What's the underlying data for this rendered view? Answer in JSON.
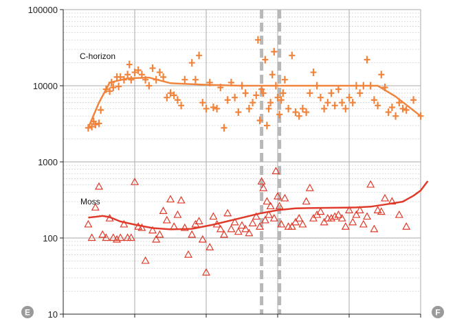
{
  "chart_data": {
    "type": "scatter",
    "title": "",
    "xlabel": "",
    "ylabel": "",
    "y_scale": "log",
    "ylim": [
      10,
      100000
    ],
    "y_ticks": [
      "10",
      "100",
      "1000",
      "10000",
      "100000"
    ],
    "xlim": [
      0,
      100
    ],
    "x_ticks": [
      0,
      20,
      40,
      60,
      80,
      100
    ],
    "grid": true,
    "colors": {
      "c_horizon": "#f0843c",
      "moss": "#e03a2a",
      "band": "#b8b8b8",
      "marker": "#9a9a9a"
    },
    "corner_markers": {
      "left": "E",
      "right": "F"
    },
    "reference_lines": [
      55.5,
      60.5
    ],
    "series": [
      {
        "name": "C-horizon",
        "marker": "plus",
        "points": [
          [
            7,
            2800
          ],
          [
            8,
            2900
          ],
          [
            9,
            3100
          ],
          [
            10,
            3200
          ],
          [
            10.5,
            4800
          ],
          [
            8.5,
            3400
          ],
          [
            12,
            9000
          ],
          [
            13,
            8500
          ],
          [
            13.5,
            11000
          ],
          [
            14,
            9500
          ],
          [
            15,
            13000
          ],
          [
            15.5,
            9800
          ],
          [
            16,
            13000
          ],
          [
            17,
            12000
          ],
          [
            18,
            14000
          ],
          [
            18.5,
            19000
          ],
          [
            19,
            12000
          ],
          [
            20,
            15000
          ],
          [
            21,
            16000
          ],
          [
            22,
            14000
          ],
          [
            23,
            12000
          ],
          [
            24,
            10000
          ],
          [
            25,
            17000
          ],
          [
            26,
            12000
          ],
          [
            27,
            15000
          ],
          [
            28,
            13000
          ],
          [
            29,
            7000
          ],
          [
            30,
            8000
          ],
          [
            31,
            7500
          ],
          [
            32,
            6500
          ],
          [
            33,
            5500
          ],
          [
            34,
            12000
          ],
          [
            36,
            20000
          ],
          [
            37,
            12000
          ],
          [
            38,
            25000
          ],
          [
            39,
            6000
          ],
          [
            40,
            5000
          ],
          [
            41,
            11000
          ],
          [
            42,
            5200
          ],
          [
            43,
            5000
          ],
          [
            44,
            9500
          ],
          [
            45,
            2800
          ],
          [
            46,
            6500
          ],
          [
            47,
            11000
          ],
          [
            48,
            7000
          ],
          [
            49,
            4500
          ],
          [
            50,
            10000
          ],
          [
            51,
            8000
          ],
          [
            52,
            5000
          ],
          [
            53,
            6000
          ],
          [
            54,
            7500
          ],
          [
            54.5,
            40000
          ],
          [
            55,
            3500
          ],
          [
            55.5,
            9000
          ],
          [
            56,
            8000
          ],
          [
            56.5,
            22000
          ],
          [
            57,
            3000
          ],
          [
            57.5,
            5000
          ],
          [
            58,
            6000
          ],
          [
            58.5,
            14000
          ],
          [
            59,
            28000
          ],
          [
            59.5,
            10000
          ],
          [
            60,
            7000
          ],
          [
            60.5,
            4200
          ],
          [
            61,
            6500
          ],
          [
            61.5,
            8000
          ],
          [
            62,
            12000
          ],
          [
            63,
            5000
          ],
          [
            64,
            25000
          ],
          [
            65,
            4500
          ],
          [
            66,
            4000
          ],
          [
            67,
            5000
          ],
          [
            68,
            4500
          ],
          [
            69,
            8000
          ],
          [
            70,
            15000
          ],
          [
            71,
            10000
          ],
          [
            72,
            7000
          ],
          [
            73,
            5000
          ],
          [
            74,
            6000
          ],
          [
            75,
            8000
          ],
          [
            76,
            5500
          ],
          [
            77,
            9000
          ],
          [
            78,
            6000
          ],
          [
            79,
            5000
          ],
          [
            80,
            7000
          ],
          [
            81,
            6000
          ],
          [
            82,
            10000
          ],
          [
            83,
            8000
          ],
          [
            84,
            10000
          ],
          [
            85,
            22000
          ],
          [
            86,
            10000
          ],
          [
            87,
            6500
          ],
          [
            88,
            5500
          ],
          [
            89,
            14000
          ],
          [
            90,
            9500
          ],
          [
            91,
            4500
          ],
          [
            92,
            5200
          ],
          [
            93,
            4000
          ],
          [
            94,
            6000
          ],
          [
            95,
            5000
          ],
          [
            96,
            4800
          ],
          [
            98,
            6500
          ],
          [
            100,
            4000
          ]
        ],
        "trend": [
          [
            7,
            2800
          ],
          [
            10,
            6000
          ],
          [
            13,
            11000
          ],
          [
            18,
            12500
          ],
          [
            24,
            12800
          ],
          [
            30,
            10800
          ],
          [
            40,
            10300
          ],
          [
            50,
            10000
          ],
          [
            60,
            10000
          ],
          [
            70,
            10000
          ],
          [
            80,
            10000
          ],
          [
            88,
            10000
          ],
          [
            93,
            7200
          ],
          [
            100,
            4000
          ]
        ]
      },
      {
        "name": "Moss",
        "marker": "triangle",
        "points": [
          [
            7,
            150
          ],
          [
            8,
            100
          ],
          [
            9,
            250
          ],
          [
            10,
            470
          ],
          [
            11,
            110
          ],
          [
            12,
            100
          ],
          [
            13,
            180
          ],
          [
            14,
            100
          ],
          [
            15,
            95
          ],
          [
            16,
            100
          ],
          [
            17,
            150
          ],
          [
            18,
            100
          ],
          [
            19,
            100
          ],
          [
            20,
            540
          ],
          [
            21,
            140
          ],
          [
            22,
            135
          ],
          [
            23,
            50
          ],
          [
            25,
            125
          ],
          [
            26,
            95
          ],
          [
            27,
            110
          ],
          [
            28,
            225
          ],
          [
            29,
            170
          ],
          [
            30,
            320
          ],
          [
            31,
            140
          ],
          [
            32,
            200
          ],
          [
            33,
            310
          ],
          [
            34,
            135
          ],
          [
            35,
            60
          ],
          [
            36,
            110
          ],
          [
            37,
            150
          ],
          [
            38,
            165
          ],
          [
            39,
            95
          ],
          [
            40,
            35
          ],
          [
            41,
            75
          ],
          [
            42,
            190
          ],
          [
            43,
            150
          ],
          [
            44,
            130
          ],
          [
            45,
            110
          ],
          [
            46,
            210
          ],
          [
            47,
            130
          ],
          [
            48,
            160
          ],
          [
            49,
            120
          ],
          [
            50,
            145
          ],
          [
            51,
            130
          ],
          [
            52,
            115
          ],
          [
            53,
            155
          ],
          [
            54,
            190
          ],
          [
            55,
            140
          ],
          [
            55.5,
            550
          ],
          [
            56,
            450
          ],
          [
            56.5,
            170
          ],
          [
            57,
            300
          ],
          [
            57.5,
            200
          ],
          [
            58,
            260
          ],
          [
            59,
            180
          ],
          [
            59.5,
            750
          ],
          [
            60,
            350
          ],
          [
            60.5,
            260
          ],
          [
            61,
            150
          ],
          [
            62,
            330
          ],
          [
            63,
            140
          ],
          [
            64,
            140
          ],
          [
            65,
            160
          ],
          [
            66,
            180
          ],
          [
            67,
            150
          ],
          [
            68,
            300
          ],
          [
            69,
            450
          ],
          [
            70,
            180
          ],
          [
            71,
            200
          ],
          [
            72,
            220
          ],
          [
            73,
            160
          ],
          [
            74,
            180
          ],
          [
            75,
            180
          ],
          [
            76,
            190
          ],
          [
            77,
            200
          ],
          [
            78,
            180
          ],
          [
            79,
            140
          ],
          [
            80,
            230
          ],
          [
            81,
            160
          ],
          [
            82,
            200
          ],
          [
            83,
            230
          ],
          [
            84,
            150
          ],
          [
            85,
            190
          ],
          [
            86,
            500
          ],
          [
            87,
            130
          ],
          [
            88,
            230
          ],
          [
            89,
            220
          ],
          [
            90,
            330
          ],
          [
            92,
            300
          ],
          [
            94,
            200
          ],
          [
            96,
            140
          ]
        ],
        "trend": [
          [
            7,
            185
          ],
          [
            9,
            190
          ],
          [
            11,
            195
          ],
          [
            13,
            188
          ],
          [
            16,
            165
          ],
          [
            20,
            150
          ],
          [
            25,
            135
          ],
          [
            30,
            130
          ],
          [
            36,
            132
          ],
          [
            42,
            150
          ],
          [
            48,
            175
          ],
          [
            55,
            210
          ],
          [
            60,
            232
          ],
          [
            65,
            245
          ],
          [
            70,
            248
          ],
          [
            78,
            250
          ],
          [
            82,
            252
          ],
          [
            86,
            258
          ],
          [
            90,
            275
          ],
          [
            95,
            300
          ],
          [
            98,
            360
          ],
          [
            100,
            420
          ],
          [
            102,
            560
          ]
        ]
      }
    ]
  }
}
